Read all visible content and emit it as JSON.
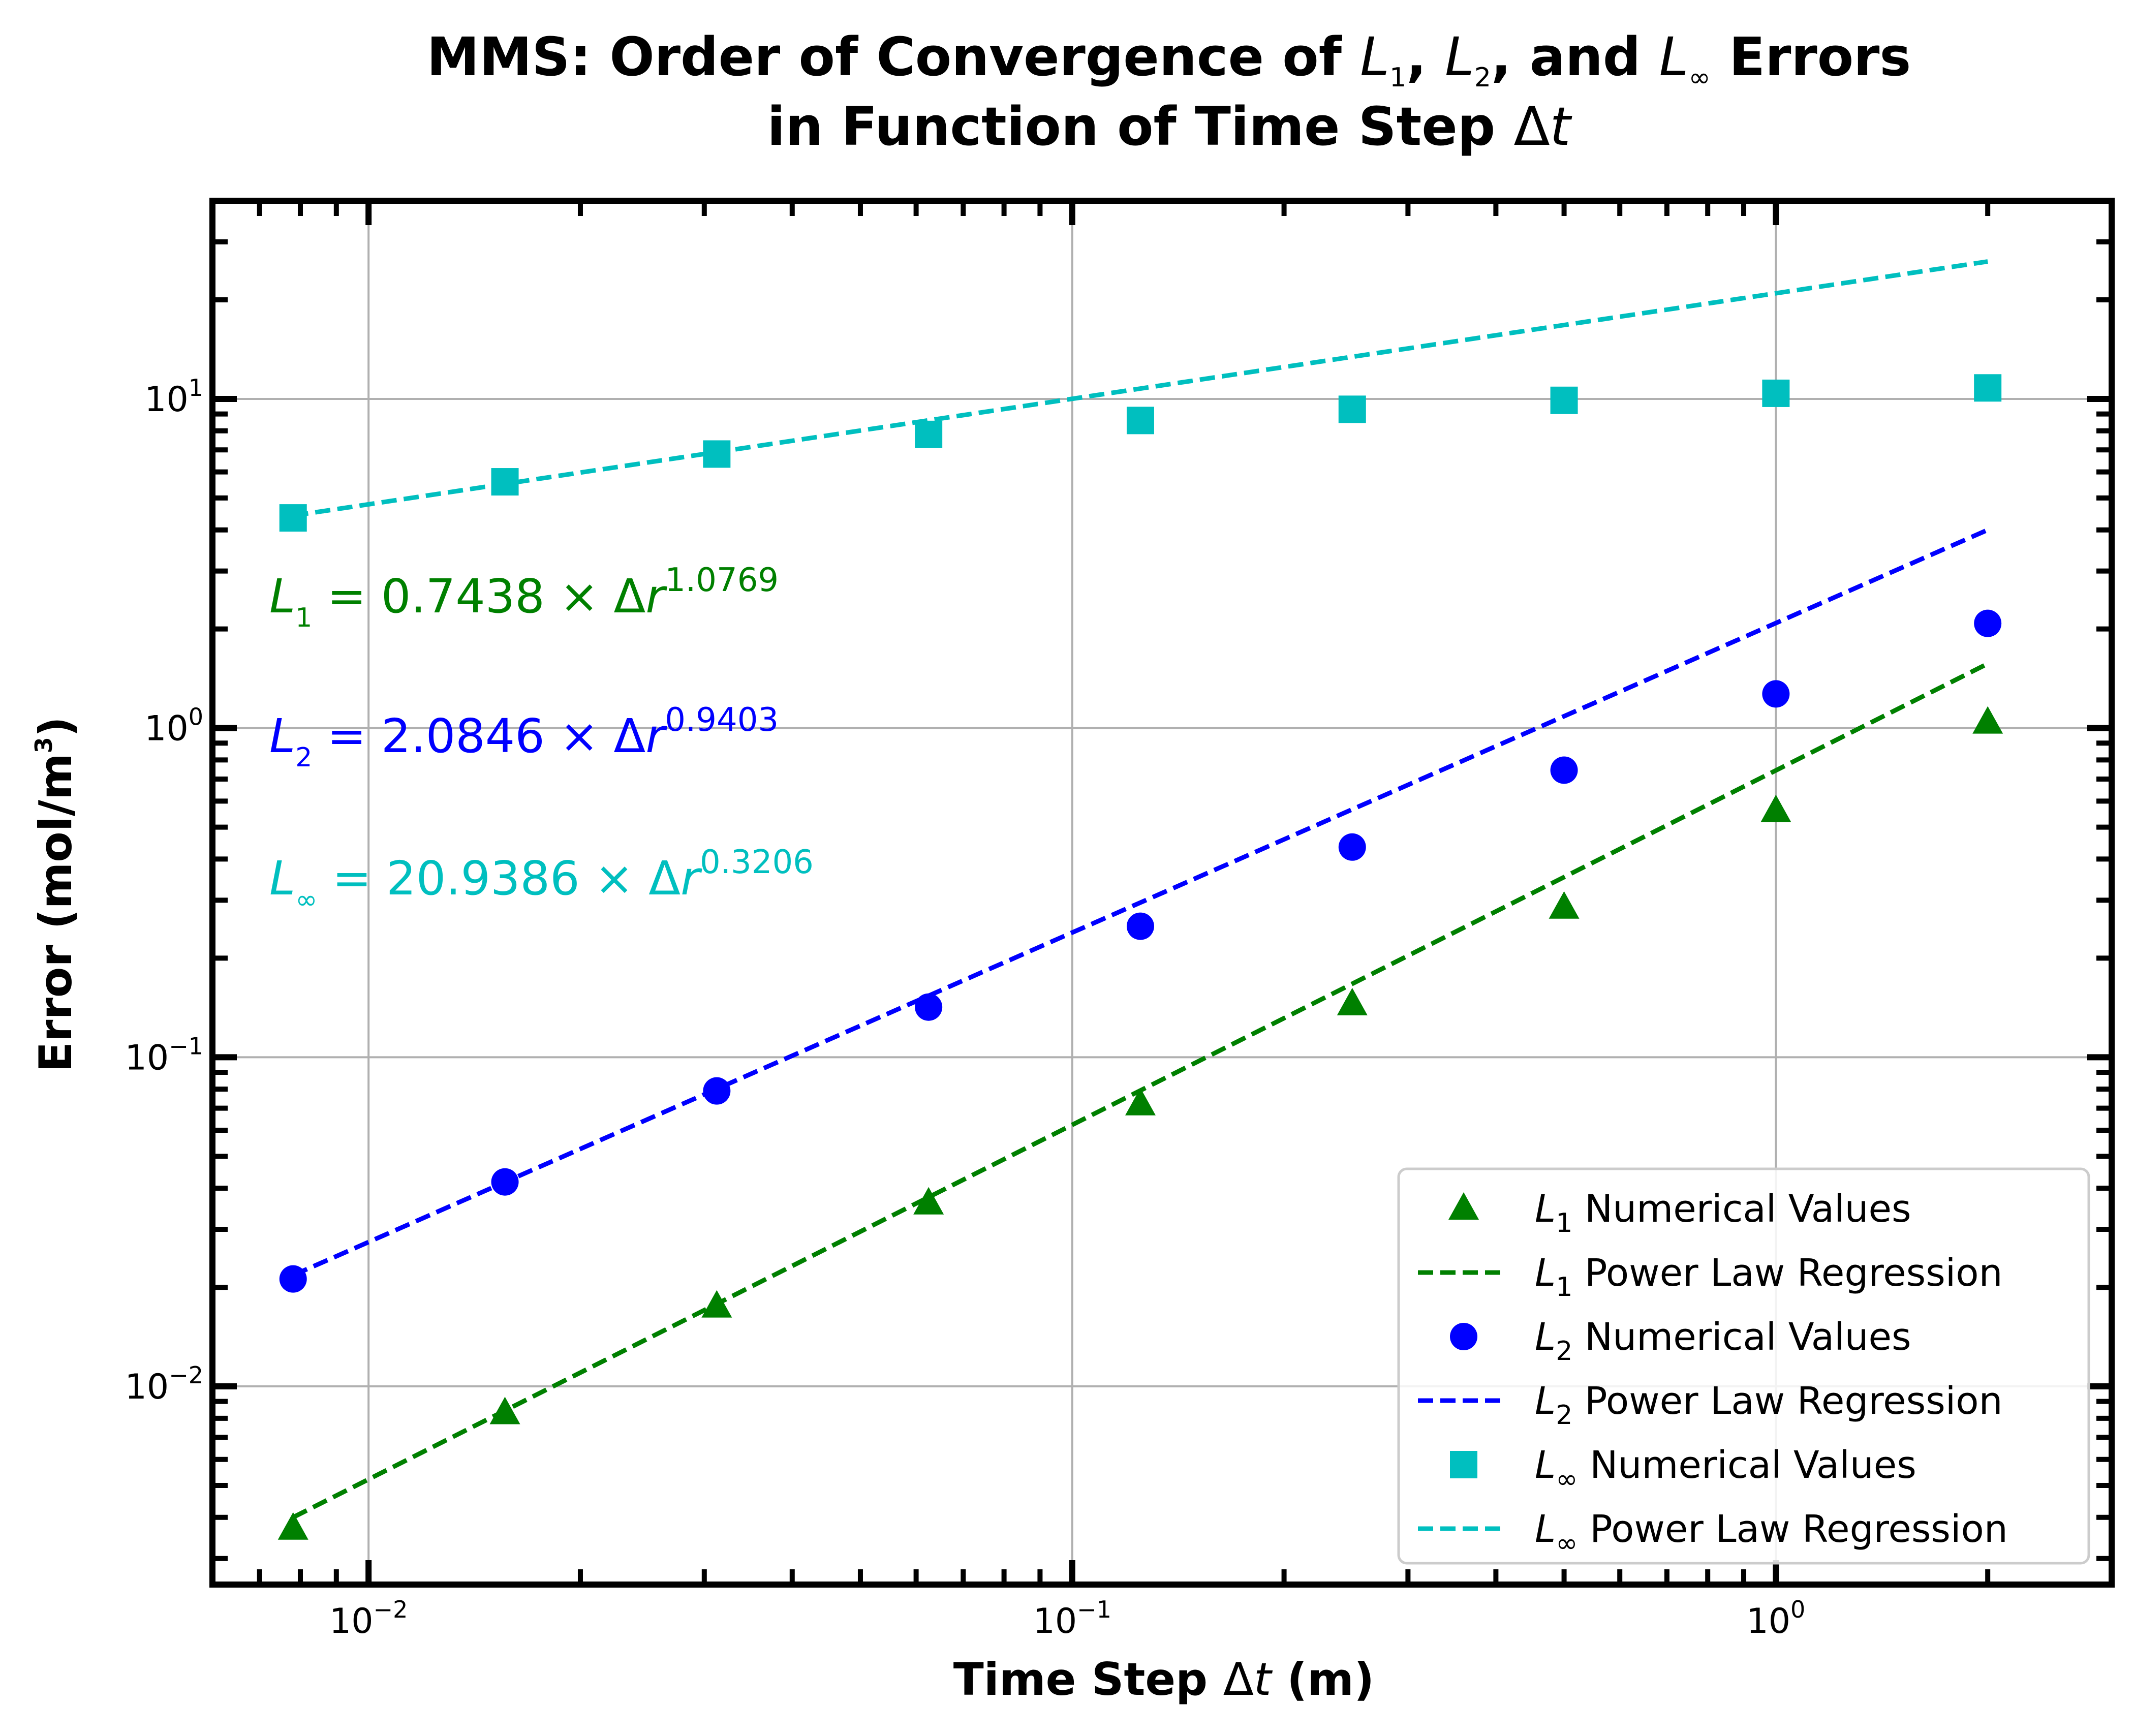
{
  "chart_data": {
    "type": "scatter",
    "title_line1_parts": [
      "MMS: Order of Convergence of ",
      "L",
      "1",
      ", ",
      "L",
      "2",
      ", and ",
      "L",
      "∞",
      " Errors"
    ],
    "title_line2_parts": [
      "in Function of Time Step ",
      "Δ",
      "t"
    ],
    "xlabel_parts": [
      "Time Step ",
      "Δ",
      "t",
      " (m)"
    ],
    "ylabel": "Error (mol/m",
    "ylabel_sup": "3",
    "ylabel_close": ")",
    "xscale": "log",
    "yscale": "log",
    "xlim": [
      0.006,
      3.0
    ],
    "ylim": [
      0.0025,
      40
    ],
    "grid": true,
    "legend_position": "lower-right",
    "x_tick_labels": [
      {
        "value": 0.01,
        "base": "10",
        "exp": "−2"
      },
      {
        "value": 0.1,
        "base": "10",
        "exp": "−1"
      },
      {
        "value": 1,
        "base": "10",
        "exp": "0"
      }
    ],
    "y_tick_labels": [
      {
        "value": 0.01,
        "base": "10",
        "exp": "−2"
      },
      {
        "value": 0.1,
        "base": "10",
        "exp": "−1"
      },
      {
        "value": 1,
        "base": "10",
        "exp": "0"
      },
      {
        "value": 10,
        "base": "10",
        "exp": "1"
      }
    ],
    "x": [
      0.0078125,
      0.015625,
      0.03125,
      0.0625,
      0.125,
      0.25,
      0.5,
      1.0,
      2.0
    ],
    "series": [
      {
        "name_sym": "L",
        "name_sub": "1",
        "name_rest": " Numerical Values",
        "marker": "triangle",
        "color": "#008000",
        "values": [
          0.0037,
          0.0083,
          0.0175,
          0.036,
          0.072,
          0.145,
          0.285,
          0.56,
          1.04
        ]
      },
      {
        "name_sym": "L",
        "name_sub": "1",
        "name_rest": " Power Law Regression",
        "style": "dashed",
        "color": "#008000",
        "coef": 0.7438,
        "exponent": 1.0769
      },
      {
        "name_sym": "L",
        "name_sub": "2",
        "name_rest": " Numerical Values",
        "marker": "circle",
        "color": "#0000ff",
        "values": [
          0.0212,
          0.0418,
          0.079,
          0.142,
          0.25,
          0.435,
          0.745,
          1.27,
          2.08
        ]
      },
      {
        "name_sym": "L",
        "name_sub": "2",
        "name_rest": " Power Law Regression",
        "style": "dashed",
        "color": "#0000ff",
        "coef": 2.0846,
        "exponent": 0.9403
      },
      {
        "name_sym": "L",
        "name_sub": "∞",
        "name_rest": " Numerical Values",
        "marker": "square",
        "color": "#00bfbf",
        "values": [
          4.35,
          5.6,
          6.8,
          7.8,
          8.6,
          9.3,
          9.9,
          10.4,
          10.8
        ]
      },
      {
        "name_sym": "L",
        "name_sub": "∞",
        "name_rest": " Power Law Regression",
        "style": "dashed",
        "color": "#00bfbf",
        "coef": 20.9386,
        "exponent": 0.3206
      }
    ],
    "annotations": [
      {
        "color": "#008000",
        "sym": "L",
        "sub": "1",
        "mid": " = 0.7438 × Δ",
        "var": "r",
        "exp": "1.0769"
      },
      {
        "color": "#0000ff",
        "sym": "L",
        "sub": "2",
        "mid": " = 2.0846 × Δ",
        "var": "r",
        "exp": "0.9403"
      },
      {
        "color": "#00bfbf",
        "sym": "L",
        "sub": "∞",
        "mid": " = 20.9386 × Δ",
        "var": "r",
        "exp": "0.3206"
      }
    ]
  }
}
